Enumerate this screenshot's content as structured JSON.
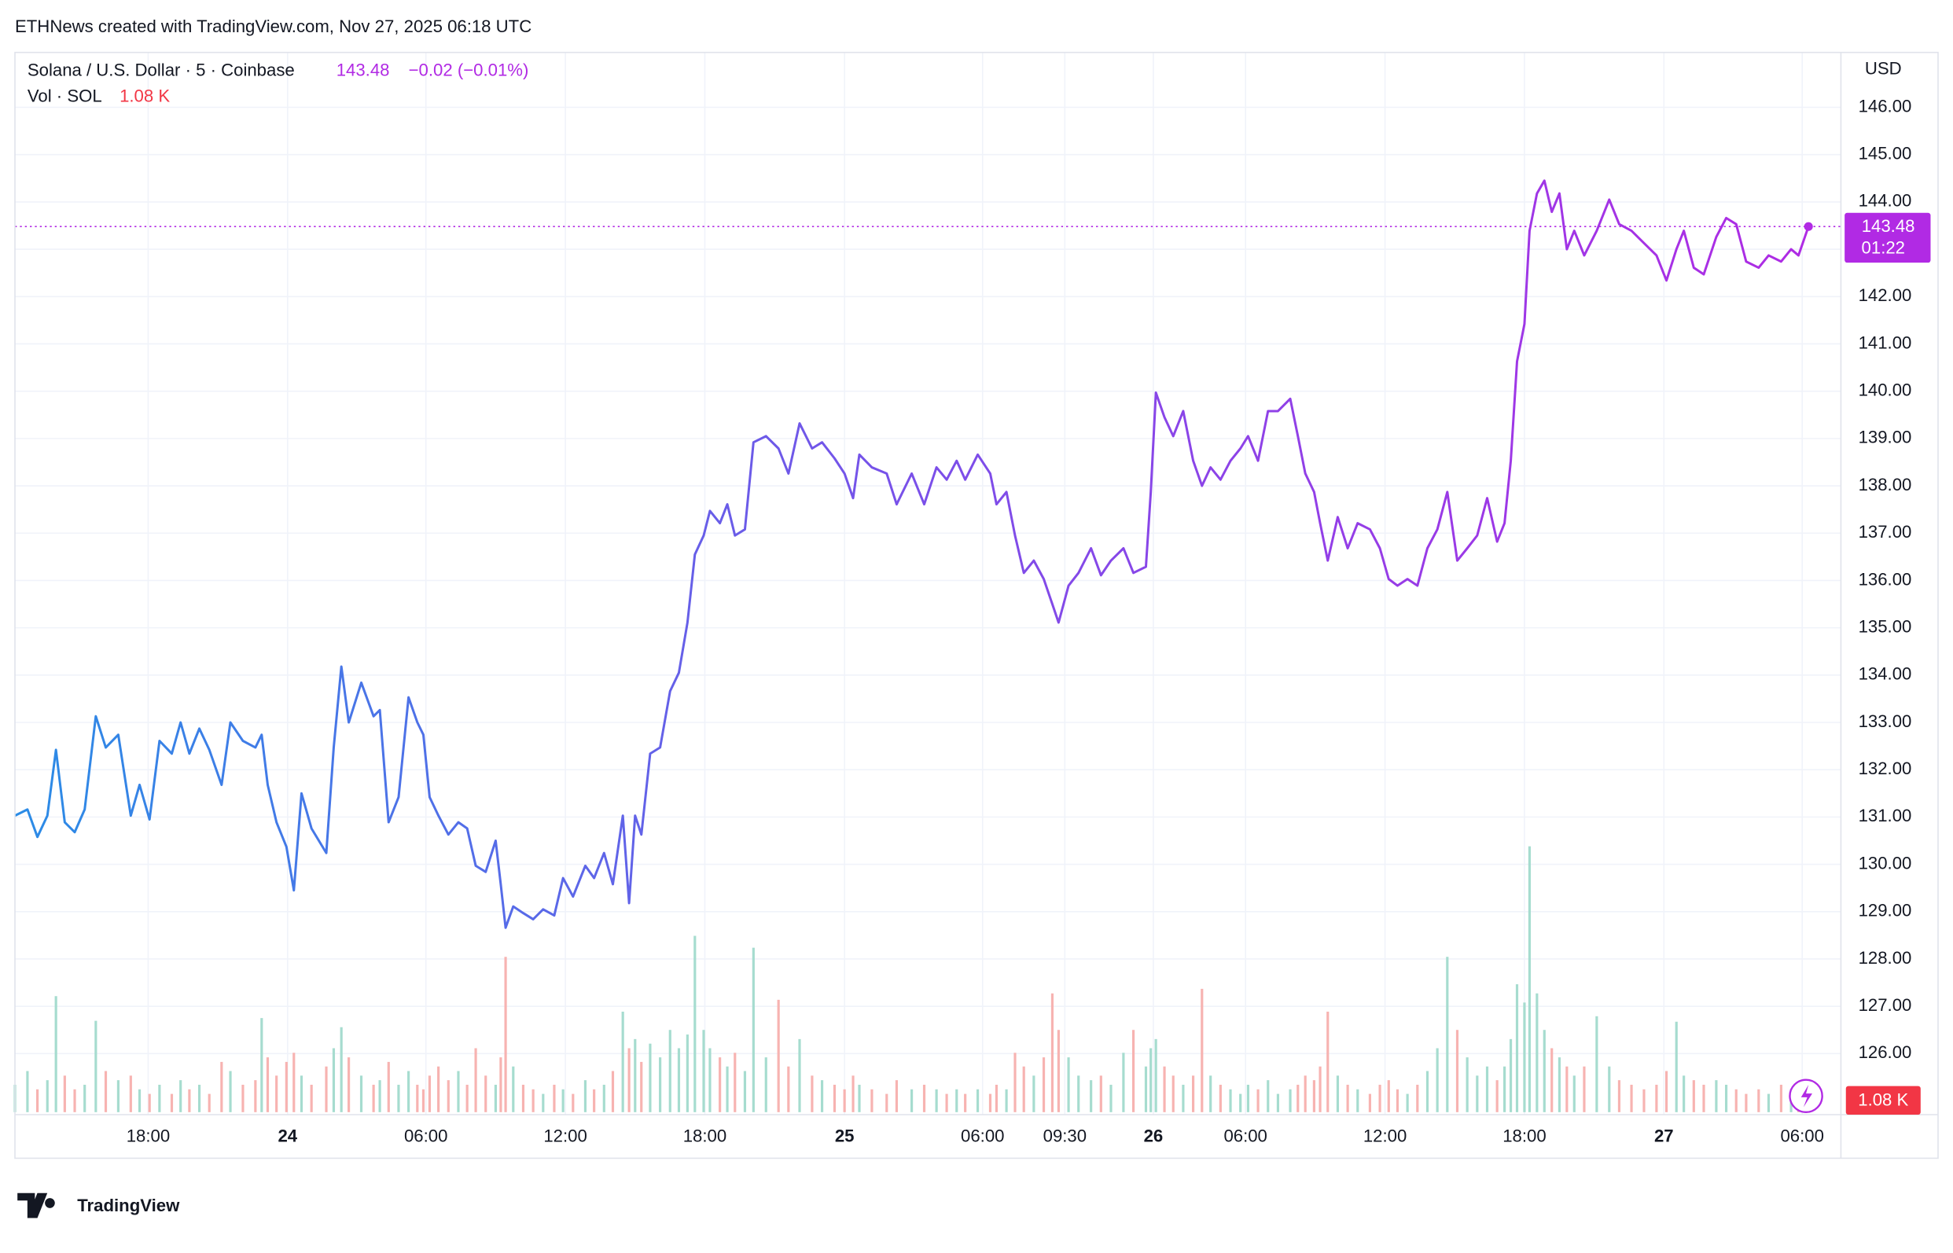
{
  "caption": "ETHNews created with TradingView.com, Nov 27, 2025 06:18 UTC",
  "brand": "TradingView",
  "chart_data": {
    "type": "line",
    "currency": "USD",
    "change": "−0.02 (−0.01%)",
    "countdown": "01:22",
    "x": [
      0,
      0.54,
      0.97,
      1.4,
      1.77,
      2.15,
      2.58,
      3.01,
      3.49,
      3.92,
      4.46,
      5.0,
      5.38,
      5.81,
      6.24,
      6.77,
      7.15,
      7.53,
      7.96,
      8.39,
      8.92,
      9.3,
      9.84,
      10.38,
      10.65,
      10.91,
      11.29,
      11.72,
      12.04,
      12.37,
      12.8,
      13.44,
      13.76,
      14.09,
      14.41,
      14.95,
      15.48,
      15.75,
      16.13,
      16.56,
      16.99,
      17.37,
      17.63,
      17.9,
      18.28,
      18.71,
      19.14,
      19.52,
      19.89,
      20.32,
      20.75,
      20.97,
      21.18,
      21.51,
      21.94,
      22.37,
      22.8,
      23.28,
      23.66,
      24.09,
      24.62,
      25.0,
      25.43,
      25.81,
      26.24,
      26.51,
      26.77,
      27.04,
      27.42,
      27.85,
      28.28,
      28.66,
      29.03,
      29.35,
      29.73,
      30.0,
      30.43,
      30.75,
      31.08,
      31.51,
      31.88,
      32.42,
      32.96,
      33.39,
      33.87,
      34.41,
      34.84,
      35.38,
      35.81,
      36.18,
      36.45,
      36.99,
      37.63,
      38.06,
      38.71,
      39.25,
      39.78,
      40.22,
      40.65,
      41.02,
      41.56,
      42.1,
      42.37,
      42.8,
      43.17,
      43.55,
      43.98,
      44.41,
      44.78,
      45.05,
      45.48,
      45.91,
      46.45,
      46.88,
      47.31,
      47.85,
      48.28,
      48.82,
      49.03,
      49.25,
      49.62,
      50.0,
      50.43,
      50.86,
      51.24,
      51.61,
      52.04,
      52.47,
      52.9,
      53.23,
      53.66,
      54.09,
      54.52,
      55.05,
      55.38,
      55.7,
      56.08,
      56.34,
      56.67,
      57.1,
      57.53,
      57.96,
      58.49,
      58.92,
      59.3,
      59.68,
      60.11,
      60.54,
      60.97,
      61.4,
      61.83,
      62.26,
      62.69,
      63.12,
      63.55,
      63.98,
      64.3,
      64.57,
      64.84,
      65.16,
      65.38,
      65.7,
      66.02,
      66.34,
      66.67,
      66.99,
      67.31,
      67.74,
      68.28,
      68.82,
      69.25,
      69.78,
      70.32,
      70.86,
      71.29,
      71.72,
      72.04,
      72.47,
      72.9,
      73.44,
      73.87,
      74.3,
      74.73,
      75.27,
      75.7,
      76.24,
      76.67,
      76.99,
      77.42
    ],
    "xlim": [
      0,
      78.82
    ],
    "xticks": [
      {
        "value": 5.75,
        "label": "18:00"
      },
      {
        "value": 11.77,
        "label": "24"
      },
      {
        "value": 17.74,
        "label": "06:00"
      },
      {
        "value": 23.76,
        "label": "12:00"
      },
      {
        "value": 29.78,
        "label": "18:00"
      },
      {
        "value": 35.81,
        "label": "25"
      },
      {
        "value": 41.77,
        "label": "06:00"
      },
      {
        "value": 45.32,
        "label": "09:30"
      },
      {
        "value": 49.14,
        "label": "26"
      },
      {
        "value": 53.12,
        "label": "06:00"
      },
      {
        "value": 59.14,
        "label": "12:00"
      },
      {
        "value": 65.16,
        "label": "18:00"
      },
      {
        "value": 71.18,
        "label": "27"
      },
      {
        "value": 77.15,
        "label": "06:00"
      }
    ],
    "ylim": [
      124.71,
      147.16
    ],
    "yticks": [
      {
        "value": 126,
        "label": "126.00"
      },
      {
        "value": 127,
        "label": "127.00"
      },
      {
        "value": 128,
        "label": "128.00"
      },
      {
        "value": 129,
        "label": "129.00"
      },
      {
        "value": 130,
        "label": "130.00"
      },
      {
        "value": 131,
        "label": "131.00"
      },
      {
        "value": 132,
        "label": "132.00"
      },
      {
        "value": 133,
        "label": "133.00"
      },
      {
        "value": 134,
        "label": "134.00"
      },
      {
        "value": 135,
        "label": "135.00"
      },
      {
        "value": 136,
        "label": "136.00"
      },
      {
        "value": 137,
        "label": "137.00"
      },
      {
        "value": 138,
        "label": "138.00"
      },
      {
        "value": 139,
        "label": "139.00"
      },
      {
        "value": 140,
        "label": "140.00"
      },
      {
        "value": 141,
        "label": "141.00"
      },
      {
        "value": 142,
        "label": "142.00"
      },
      {
        "value": 143,
        "label": "143.00"
      },
      {
        "value": 144,
        "label": "144.00"
      },
      {
        "value": 145,
        "label": "145.00"
      },
      {
        "value": 146,
        "label": "146.00"
      }
    ],
    "y2lim": [
      0,
      116000
    ],
    "grid": true,
    "series": [
      {
        "name": "Solana / U.S. Dollar · 5 · Coinbase",
        "gradient": [
          "#2b8ce6",
          "#7b4fe9",
          "#b12ae4"
        ],
        "values": [
          131.03,
          131.16,
          130.58,
          131.03,
          132.42,
          130.89,
          130.68,
          131.16,
          133.13,
          132.47,
          132.74,
          131.03,
          131.68,
          130.95,
          132.61,
          132.34,
          133.0,
          132.34,
          132.87,
          132.42,
          131.68,
          133.0,
          132.61,
          132.47,
          132.74,
          131.68,
          130.89,
          130.37,
          129.45,
          131.5,
          130.76,
          130.24,
          132.47,
          134.18,
          133.0,
          133.84,
          133.13,
          133.26,
          130.89,
          131.42,
          133.53,
          133.0,
          132.74,
          131.42,
          131.03,
          130.63,
          130.89,
          130.76,
          129.97,
          129.84,
          130.5,
          129.58,
          128.66,
          129.11,
          128.97,
          128.84,
          129.05,
          128.92,
          129.71,
          129.32,
          129.97,
          129.71,
          130.24,
          129.58,
          131.03,
          129.18,
          131.03,
          130.63,
          132.34,
          132.47,
          133.66,
          134.05,
          135.11,
          136.55,
          136.95,
          137.47,
          137.21,
          137.61,
          136.95,
          137.08,
          138.92,
          139.05,
          138.79,
          138.26,
          139.32,
          138.79,
          138.92,
          138.58,
          138.26,
          137.74,
          138.66,
          138.39,
          138.26,
          137.61,
          138.26,
          137.61,
          138.39,
          138.13,
          138.53,
          138.13,
          138.66,
          138.26,
          137.61,
          137.87,
          136.95,
          136.16,
          136.42,
          136.03,
          135.5,
          135.11,
          135.89,
          136.16,
          136.68,
          136.11,
          136.42,
          136.68,
          136.16,
          136.29,
          137.87,
          139.97,
          139.45,
          139.05,
          139.58,
          138.53,
          138.0,
          138.39,
          138.13,
          138.53,
          138.79,
          139.05,
          138.53,
          139.58,
          139.58,
          139.84,
          139.05,
          138.26,
          137.87,
          137.21,
          136.42,
          137.34,
          136.68,
          137.21,
          137.08,
          136.68,
          136.03,
          135.89,
          136.03,
          135.89,
          136.68,
          137.08,
          137.87,
          136.42,
          136.68,
          136.95,
          137.74,
          136.82,
          137.21,
          138.53,
          140.63,
          141.42,
          143.39,
          144.18,
          144.45,
          143.79,
          144.18,
          143.0,
          143.39,
          142.87,
          143.39,
          144.05,
          143.53,
          143.39,
          143.13,
          142.87,
          142.34,
          143.0,
          143.39,
          142.61,
          142.47,
          143.26,
          143.66,
          143.53,
          142.74,
          142.61,
          142.87,
          142.74,
          143.0,
          142.87,
          143.48
        ]
      },
      {
        "name": "Vol · SOL",
        "type": "bar",
        "axis": "y2",
        "up_color": "#a6dccf",
        "down_color": "#f7b3b1",
        "last_label": "1.08 K",
        "last_color": "#f23645",
        "values": [
          3000,
          4500,
          2500,
          3500,
          12700,
          4000,
          2500,
          3000,
          10000,
          4500,
          3500,
          4000,
          2500,
          2000,
          3000,
          2000,
          3500,
          2500,
          3000,
          2000,
          5500,
          4500,
          3000,
          3500,
          10300,
          6000,
          4000,
          5500,
          6500,
          4000,
          3000,
          5000,
          7000,
          9300,
          6000,
          4000,
          3000,
          3500,
          5500,
          3000,
          4500,
          3000,
          2500,
          4000,
          5000,
          3500,
          4500,
          3000,
          7000,
          4000,
          3000,
          6000,
          17000,
          5000,
          3000,
          2500,
          2000,
          3000,
          2500,
          2000,
          3500,
          2500,
          3000,
          4500,
          11000,
          7000,
          8000,
          5500,
          7500,
          6000,
          9000,
          7000,
          8500,
          19300,
          9000,
          7000,
          6000,
          5000,
          6500,
          4500,
          18000,
          6000,
          12300,
          5000,
          8000,
          4000,
          3500,
          3000,
          2500,
          4000,
          3000,
          2500,
          2000,
          3500,
          2500,
          3000,
          2500,
          2000,
          2500,
          2000,
          2500,
          2000,
          3000,
          2500,
          6500,
          5000,
          4000,
          6000,
          13000,
          9000,
          6000,
          4000,
          3500,
          4000,
          3000,
          6500,
          9000,
          5000,
          7000,
          8000,
          5000,
          4000,
          3000,
          4000,
          13500,
          4000,
          3000,
          2500,
          2000,
          3000,
          2500,
          3500,
          2000,
          2500,
          3000,
          4000,
          3500,
          5000,
          11000,
          4000,
          3000,
          2500,
          2000,
          3000,
          3500,
          2500,
          2000,
          3000,
          4500,
          7000,
          17000,
          9000,
          6000,
          4000,
          5000,
          3500,
          5000,
          8000,
          14000,
          12000,
          29100,
          13000,
          9000,
          7000,
          6000,
          5000,
          4000,
          5000,
          10500,
          5000,
          3500,
          3000,
          2500,
          3000,
          4500,
          9900,
          4000,
          3500,
          3000,
          3500,
          3000,
          2500,
          2000,
          2500,
          2000,
          3000,
          2500,
          2000,
          1080
        ]
      }
    ]
  }
}
